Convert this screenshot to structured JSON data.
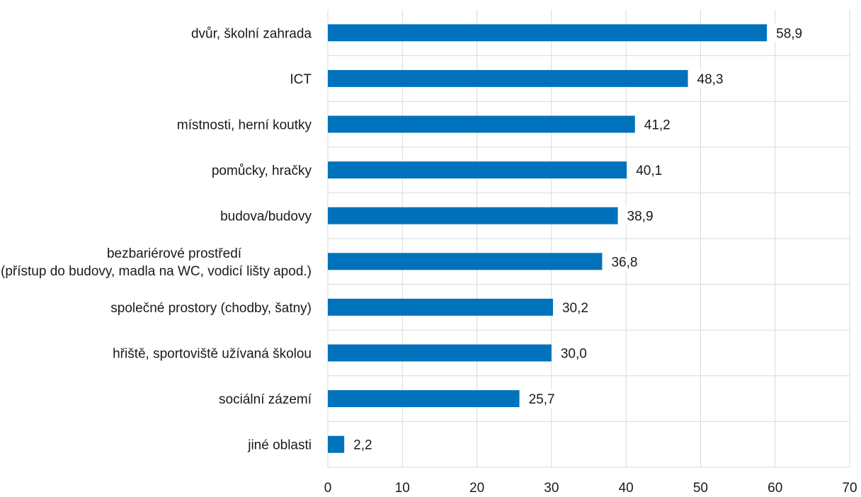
{
  "chart_data": {
    "type": "bar",
    "orientation": "horizontal",
    "title": "",
    "xlabel": "",
    "ylabel": "",
    "xlim": [
      0,
      70
    ],
    "x_ticks": [
      "0",
      "10",
      "20",
      "30",
      "40",
      "50",
      "60",
      "70"
    ],
    "grid": true,
    "bar_color": "#0072bc",
    "categories": [
      [
        "dvůr, školní zahrada"
      ],
      [
        "ICT"
      ],
      [
        "místnosti, herní koutky"
      ],
      [
        "pomůcky, hračky"
      ],
      [
        "budova/budovy"
      ],
      [
        "bezbariérové prostředí",
        "(přístup do budovy, madla na WC, vodicí lišty apod.)"
      ],
      [
        "společné prostory (chodby, šatny)"
      ],
      [
        "hřiště, sportoviště užívaná školou"
      ],
      [
        "sociální zázemí"
      ],
      [
        "jiné oblasti"
      ]
    ],
    "values": [
      58.9,
      48.3,
      41.2,
      40.1,
      38.9,
      36.8,
      30.2,
      30.0,
      25.7,
      2.2
    ],
    "value_labels": [
      "58,9",
      "48,3",
      "41,2",
      "40,1",
      "38,9",
      "36,8",
      "30,2",
      "30,0",
      "25,7",
      "2,2"
    ]
  }
}
